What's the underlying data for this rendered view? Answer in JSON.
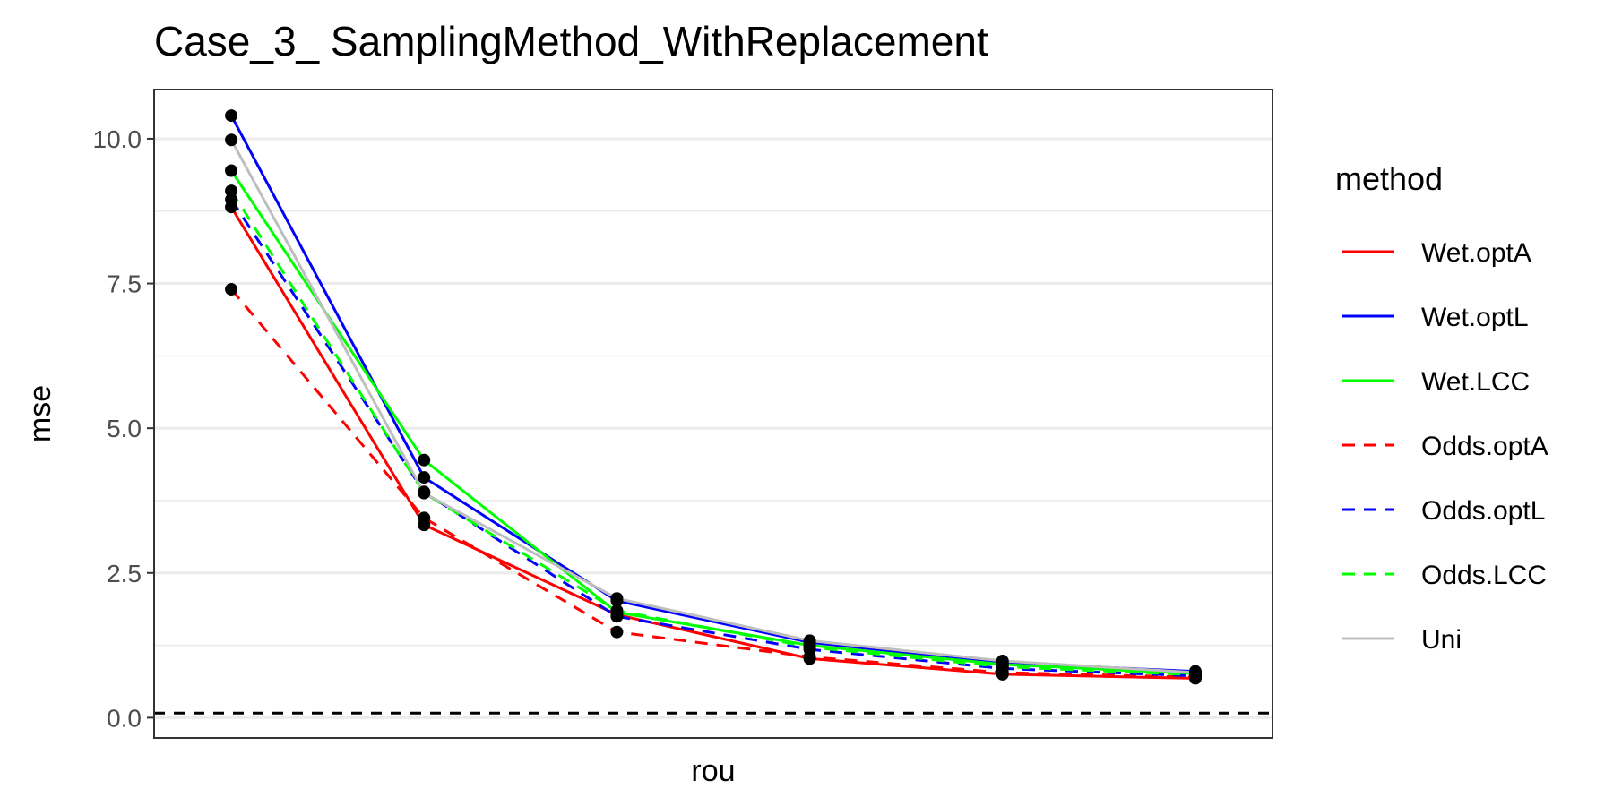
{
  "chart_data": {
    "type": "line",
    "title": "Case_3_ SamplingMethod_WithReplacement",
    "xlabel": "rou",
    "ylabel": "mse",
    "x": [
      1,
      2,
      3,
      4,
      5,
      6
    ],
    "xlim": [
      0.6,
      6.4
    ],
    "ylim": [
      -0.35,
      10.85
    ],
    "yticks": [
      0.0,
      2.5,
      5.0,
      7.5,
      10.0
    ],
    "ytick_labels": [
      "0.0",
      "2.5",
      "5.0",
      "7.5",
      "10.0"
    ],
    "grid": true,
    "reference_line": {
      "y": 0.08,
      "style": "dashed",
      "color": "#000000"
    },
    "legend": {
      "title": "method",
      "position": "right"
    },
    "series": [
      {
        "name": "Wet.optA",
        "color": "#ff0000",
        "dash": "solid",
        "values": [
          8.82,
          3.33,
          1.78,
          1.02,
          0.75,
          0.68
        ]
      },
      {
        "name": "Wet.optL",
        "color": "#0000ff",
        "dash": "solid",
        "values": [
          10.4,
          4.15,
          2.02,
          1.3,
          0.95,
          0.8
        ]
      },
      {
        "name": "Wet.LCC",
        "color": "#00ff00",
        "dash": "solid",
        "values": [
          9.45,
          4.45,
          1.82,
          1.25,
          0.92,
          0.76
        ]
      },
      {
        "name": "Odds.optA",
        "color": "#ff0000",
        "dash": "dashed",
        "values": [
          7.4,
          3.45,
          1.48,
          1.05,
          0.78,
          0.7
        ]
      },
      {
        "name": "Odds.optL",
        "color": "#0000ff",
        "dash": "dashed",
        "values": [
          8.95,
          3.9,
          1.75,
          1.18,
          0.85,
          0.72
        ]
      },
      {
        "name": "Odds.LCC",
        "color": "#00ff00",
        "dash": "dashed",
        "values": [
          9.1,
          3.88,
          1.85,
          1.22,
          0.88,
          0.74
        ]
      },
      {
        "name": "Uni",
        "color": "#bebebe",
        "dash": "solid",
        "values": [
          9.98,
          3.88,
          2.06,
          1.33,
          0.98,
          0.78
        ]
      }
    ]
  }
}
